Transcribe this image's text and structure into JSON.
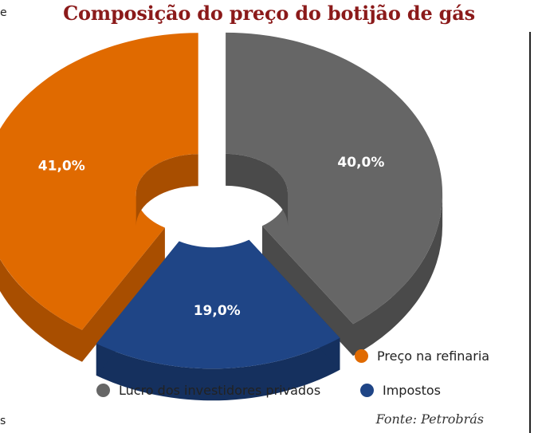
{
  "title": "Composição do preço do botijão de gás",
  "source": "Fonte: Petrobrás",
  "edge_marks": [
    "e",
    "s"
  ],
  "chart_data": {
    "type": "pie",
    "title": "Composição do preço do botijão de gás",
    "slices": [
      {
        "label": "Lucro dos investidores privados",
        "value": 40.0,
        "display": "40,0%",
        "color": "#666666",
        "side": "#4a4a4a"
      },
      {
        "label": "Impostos",
        "value": 19.0,
        "display": "19,0%",
        "color": "#1f4586",
        "side": "#15305e"
      },
      {
        "label": "Preço na refinaria",
        "value": 41.0,
        "display": "41,0%",
        "color": "#e06a00",
        "side": "#a84e00"
      }
    ],
    "legend_position": "bottom-right"
  }
}
